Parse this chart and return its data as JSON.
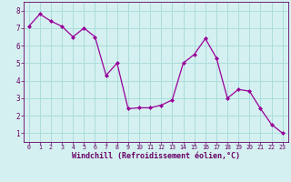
{
  "x": [
    0,
    1,
    2,
    3,
    4,
    5,
    6,
    7,
    8,
    9,
    10,
    11,
    12,
    13,
    14,
    15,
    16,
    17,
    18,
    19,
    20,
    21,
    22,
    23
  ],
  "y": [
    7.1,
    7.8,
    7.4,
    7.1,
    6.5,
    7.0,
    6.5,
    4.3,
    5.0,
    2.4,
    2.45,
    2.45,
    2.6,
    2.9,
    5.0,
    5.5,
    6.4,
    5.3,
    3.0,
    3.5,
    3.4,
    2.4,
    1.5,
    1.0
  ],
  "line_color": "#990099",
  "marker": "D",
  "marker_size": 2,
  "bg_color": "#d5f0f0",
  "grid_color": "#aadddd",
  "xlabel": "Windchill (Refroidissement éolien,°C)",
  "xlabel_color": "#660066",
  "tick_color": "#660066",
  "xlim": [
    -0.5,
    23.5
  ],
  "ylim": [
    0.5,
    8.5
  ],
  "yticks": [
    1,
    2,
    3,
    4,
    5,
    6,
    7,
    8
  ],
  "xticks": [
    0,
    1,
    2,
    3,
    4,
    5,
    6,
    7,
    8,
    9,
    10,
    11,
    12,
    13,
    14,
    15,
    16,
    17,
    18,
    19,
    20,
    21,
    22,
    23
  ],
  "font_family": "monospace",
  "xlabel_fontsize": 6.0,
  "xtick_fontsize": 4.8,
  "ytick_fontsize": 5.5
}
